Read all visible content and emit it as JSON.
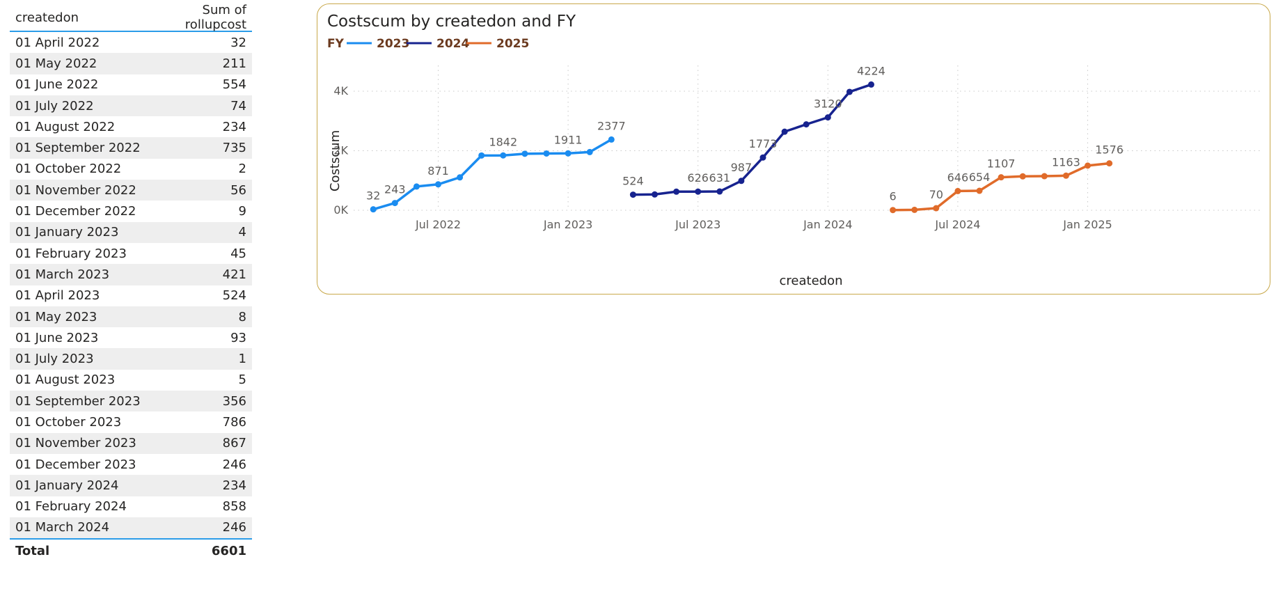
{
  "table": {
    "col_date": "createdon",
    "col_value": "Sum of rollupcost",
    "rows": [
      {
        "date": "01 April 2022",
        "value": "32"
      },
      {
        "date": "01 May 2022",
        "value": "211"
      },
      {
        "date": "01 June 2022",
        "value": "554"
      },
      {
        "date": "01 July 2022",
        "value": "74"
      },
      {
        "date": "01 August 2022",
        "value": "234"
      },
      {
        "date": "01 September 2022",
        "value": "735"
      },
      {
        "date": "01 October 2022",
        "value": "2"
      },
      {
        "date": "01 November 2022",
        "value": "56"
      },
      {
        "date": "01 December 2022",
        "value": "9"
      },
      {
        "date": "01 January 2023",
        "value": "4"
      },
      {
        "date": "01 February 2023",
        "value": "45"
      },
      {
        "date": "01 March 2023",
        "value": "421"
      },
      {
        "date": "01 April 2023",
        "value": "524"
      },
      {
        "date": "01 May 2023",
        "value": "8"
      },
      {
        "date": "01 June 2023",
        "value": "93"
      },
      {
        "date": "01 July 2023",
        "value": "1"
      },
      {
        "date": "01 August 2023",
        "value": "5"
      },
      {
        "date": "01 September 2023",
        "value": "356"
      },
      {
        "date": "01 October 2023",
        "value": "786"
      },
      {
        "date": "01 November 2023",
        "value": "867"
      },
      {
        "date": "01 December 2023",
        "value": "246"
      },
      {
        "date": "01 January 2024",
        "value": "234"
      },
      {
        "date": "01 February 2024",
        "value": "858"
      },
      {
        "date": "01 March 2024",
        "value": "246"
      }
    ],
    "total_label": "Total",
    "total_value": "6601"
  },
  "chart_data": {
    "type": "line",
    "title": "Costscum by createdon and FY",
    "legend_title": "FY",
    "legend_position": "top-left",
    "xlabel": "createdon",
    "ylabel": "Costscum",
    "ylim": [
      0,
      4500
    ],
    "yticks": [
      {
        "value": 0,
        "label": "0K"
      },
      {
        "value": 2000,
        "label": "2K"
      },
      {
        "value": 4000,
        "label": "4K"
      }
    ],
    "xticks": [
      "Jul 2022",
      "Jan 2023",
      "Jul 2023",
      "Jan 2024",
      "Jul 2024",
      "Jan 2025"
    ],
    "grid": true,
    "series": [
      {
        "name": "2023",
        "color": "#1a8cf0",
        "x": [
          "2022-04-01",
          "2022-05-01",
          "2022-06-01",
          "2022-07-01",
          "2022-08-01",
          "2022-09-01",
          "2022-10-01",
          "2022-11-01",
          "2022-12-01",
          "2023-01-01",
          "2023-02-01",
          "2023-03-01"
        ],
        "y": [
          32,
          243,
          797,
          871,
          1105,
          1840,
          1842,
          1898,
          1907,
          1911,
          1956,
          2377
        ],
        "labels": {
          "0": "32",
          "1": "243",
          "3": "871",
          "6": "1842",
          "9": "1911",
          "11": "2377"
        }
      },
      {
        "name": "2024",
        "color": "#17238f",
        "x": [
          "2023-04-01",
          "2023-05-01",
          "2023-06-01",
          "2023-07-01",
          "2023-08-01",
          "2023-09-01",
          "2023-10-01",
          "2023-11-01",
          "2023-12-01",
          "2024-01-01",
          "2024-02-01",
          "2024-03-01"
        ],
        "y": [
          524,
          532,
          625,
          626,
          631,
          987,
          1773,
          2640,
          2886,
          3120,
          3978,
          4224
        ],
        "labels": {
          "0": "524",
          "3": "626",
          "4": "631",
          "5": "987",
          "6": "1773",
          "9": "3120",
          "11": "4224"
        }
      },
      {
        "name": "2025",
        "color": "#e06b2a",
        "x": [
          "2024-04-01",
          "2024-05-01",
          "2024-06-01",
          "2024-07-01",
          "2024-08-01",
          "2024-09-01",
          "2024-10-01",
          "2024-11-01",
          "2024-12-01",
          "2025-01-01",
          "2025-02-01"
        ],
        "y": [
          6,
          14,
          70,
          646,
          654,
          1107,
          1140,
          1145,
          1163,
          1500,
          1576
        ],
        "labels": {
          "0": "6",
          "2": "70",
          "3": "646",
          "4": "654",
          "5": "1107",
          "8": "1163",
          "10": "1576"
        }
      }
    ]
  }
}
